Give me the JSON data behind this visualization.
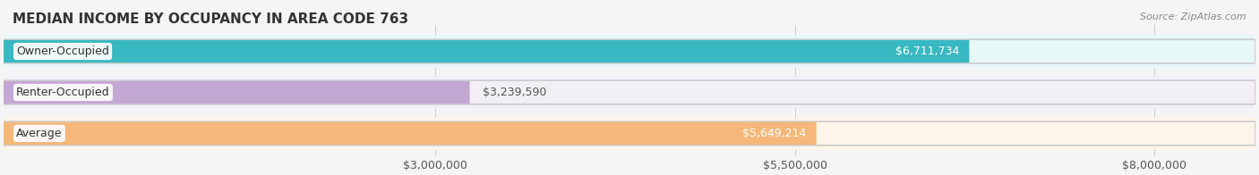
{
  "title": "MEDIAN INCOME BY OCCUPANCY IN AREA CODE 763",
  "source": "Source: ZipAtlas.com",
  "categories": [
    "Owner-Occupied",
    "Renter-Occupied",
    "Average"
  ],
  "values": [
    6711734,
    3239590,
    5649214
  ],
  "value_labels": [
    "$6,711,734",
    "$3,239,590",
    "$5,649,214"
  ],
  "bar_colors": [
    "#38b8c0",
    "#c4a8d4",
    "#f5b87a"
  ],
  "bar_bg_colors": [
    "#e8f8f9",
    "#f3eff7",
    "#fef5ea"
  ],
  "xlim": [
    0,
    8700000
  ],
  "xticks": [
    0,
    3000000,
    5500000,
    8000000
  ],
  "xtick_labels": [
    "$3,000,000",
    "$5,500,000",
    "$8,000,000"
  ],
  "title_fontsize": 11,
  "label_fontsize": 9,
  "value_fontsize": 9,
  "source_fontsize": 8,
  "bg_color": "#f5f5f5",
  "bar_row_bg": "#f9f9f9"
}
